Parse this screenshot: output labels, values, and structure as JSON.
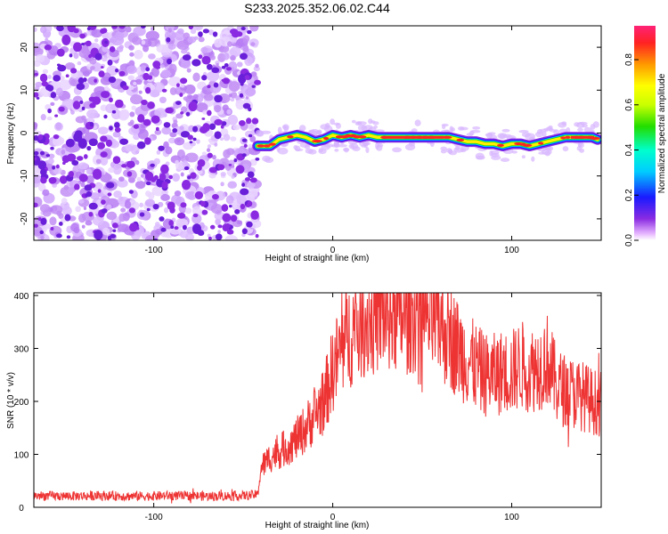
{
  "title": "S233.2025.352.06.02.C44",
  "chart_data": [
    {
      "type": "heatmap",
      "title": "S233.2025.352.06.02.C44",
      "xlabel": "Height of straight line (km)",
      "ylabel": "Frequency (Hz)",
      "xlim": [
        -167,
        150
      ],
      "ylim": [
        -25,
        25
      ],
      "x_ticks": [
        "-100",
        "0",
        "100"
      ],
      "x_tick_values": [
        -100,
        0,
        100
      ],
      "y_ticks": [
        "20",
        "10",
        "0",
        "-10",
        "-20"
      ],
      "y_tick_values": [
        20,
        10,
        0,
        -10,
        -20
      ],
      "colorbar": {
        "label": "Normalized spectral amplitude",
        "range": [
          0,
          0.95
        ],
        "ticks": [
          "0.0",
          "0.2",
          "0.4",
          "0.6",
          "0.8"
        ],
        "tick_values": [
          0.0,
          0.2,
          0.4,
          0.6,
          0.8
        ]
      },
      "noise_region_x": [
        -167,
        -42
      ],
      "signal_track": {
        "x": [
          -42,
          -35,
          -30,
          -25,
          -20,
          -15,
          -10,
          -5,
          0,
          5,
          10,
          15,
          20,
          25,
          30,
          40,
          50,
          60,
          65,
          70,
          75,
          80,
          85,
          90,
          95,
          100,
          105,
          110,
          115,
          120,
          125,
          130,
          135,
          140,
          145,
          148
        ],
        "freq": [
          -3,
          -3,
          -1.5,
          -1,
          -0.5,
          -1,
          -2,
          -1.5,
          -0.5,
          -1,
          -0.5,
          -1,
          -0.5,
          -1,
          -1,
          -1,
          -1,
          -1,
          -1,
          -1.5,
          -2,
          -2,
          -2.5,
          -2.5,
          -3,
          -2.5,
          -2.5,
          -3,
          -2.5,
          -2,
          -1.5,
          -1,
          -1,
          -1,
          -1,
          -1.5
        ]
      }
    },
    {
      "type": "line",
      "xlabel": "Height of straight line (km)",
      "ylabel": "SNR (10 * v/v)",
      "xlim": [
        -167,
        150
      ],
      "ylim": [
        0,
        405
      ],
      "x_ticks": [
        "-100",
        "0",
        "100"
      ],
      "x_tick_values": [
        -100,
        0,
        100
      ],
      "y_ticks": [
        "400",
        "300",
        "200",
        "100",
        "0"
      ],
      "y_tick_values": [
        400,
        300,
        200,
        100,
        0
      ],
      "series": [
        {
          "name": "SNR",
          "color": "#ee3333",
          "x": [
            -167,
            -150,
            -130,
            -110,
            -90,
            -70,
            -50,
            -42,
            -40,
            -35,
            -30,
            -25,
            -20,
            -15,
            -10,
            -5,
            0,
            5,
            10,
            15,
            20,
            25,
            30,
            35,
            40,
            45,
            50,
            55,
            60,
            65,
            70,
            75,
            80,
            85,
            90,
            95,
            100,
            105,
            110,
            115,
            120,
            125,
            130,
            135,
            140,
            145,
            150
          ],
          "y": [
            22,
            21,
            22,
            21,
            22,
            21,
            22,
            24,
            75,
            95,
            105,
            115,
            130,
            150,
            175,
            200,
            260,
            300,
            330,
            350,
            355,
            365,
            370,
            365,
            360,
            370,
            365,
            355,
            345,
            325,
            300,
            280,
            265,
            250,
            250,
            255,
            255,
            270,
            260,
            265,
            280,
            230,
            220,
            215,
            210,
            200,
            195
          ]
        }
      ]
    }
  ]
}
